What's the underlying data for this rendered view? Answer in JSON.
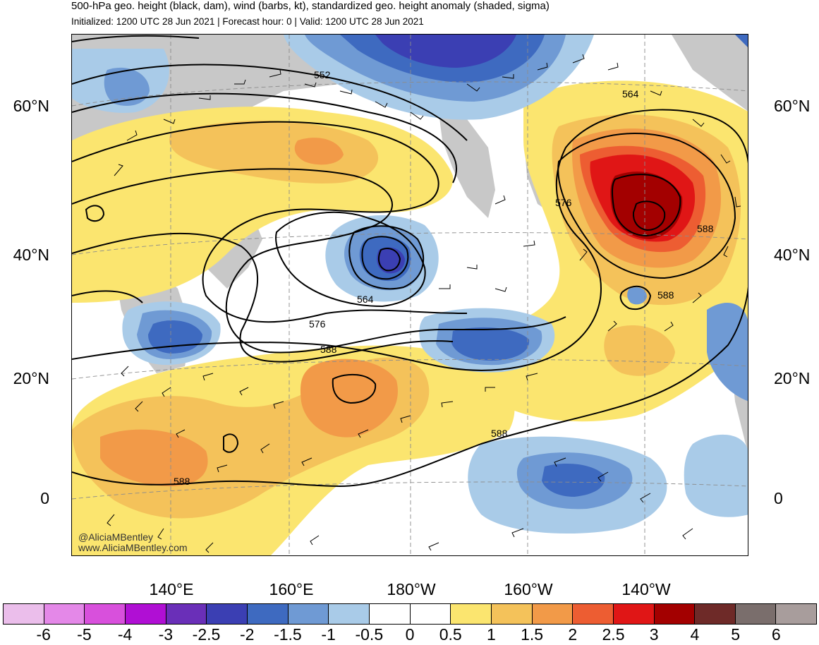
{
  "header": {
    "title": "500-hPa geo. height (black, dam), wind (barbs, kt), standardized geo. height anomaly (shaded, sigma)",
    "subtitle": "Initialized: 1200 UTC 28 Jun 2021 | Forecast hour: 0 | Valid: 1200 UTC 28 Jun 2021"
  },
  "map": {
    "lat_labels": [
      "60°N",
      "40°N",
      "20°N",
      "0"
    ],
    "lon_labels": [
      "140°E",
      "160°E",
      "180°W",
      "160°W",
      "140°W"
    ],
    "contour_labels": [
      "552",
      "564",
      "576",
      "588",
      "564",
      "576",
      "588",
      "588",
      "588",
      "588"
    ],
    "watermark_handle": "@AliciaMBentley",
    "watermark_url": "www.AliciaMBentley.com"
  },
  "colorbar": {
    "colors": [
      "#ebbeeb",
      "#e488e8",
      "#d850dc",
      "#b00fd4",
      "#6a2fb8",
      "#3b3fb3",
      "#3e6ac0",
      "#6f9ad4",
      "#a9cbe8",
      "#ffffff",
      "#ffffff",
      "#fbe56f",
      "#f4c25a",
      "#f29a48",
      "#ed5d32",
      "#e01616",
      "#a30000",
      "#6e2a28",
      "#7a6e6c",
      "#a89d9c"
    ],
    "labels": [
      "-6",
      "-5",
      "-4",
      "-3",
      "-2.5",
      "-2",
      "-1.5",
      "-1",
      "-0.5",
      "0",
      "0.5",
      "1",
      "1.5",
      "2",
      "2.5",
      "3",
      "4",
      "5",
      "6"
    ]
  },
  "colors": {
    "land": "#c8c8c8",
    "contour": "#000000",
    "grid": "#8c8c8c",
    "coast": "#505050"
  }
}
